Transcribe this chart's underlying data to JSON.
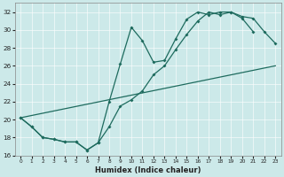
{
  "bg_color": "#cce9e9",
  "grid_color": "#b8d8d8",
  "line_color": "#1e6b5e",
  "xlabel": "Humidex (Indice chaleur)",
  "xlim": [
    -0.5,
    23.5
  ],
  "ylim": [
    16,
    33
  ],
  "xticks": [
    0,
    1,
    2,
    3,
    4,
    5,
    6,
    7,
    8,
    9,
    10,
    11,
    12,
    13,
    14,
    15,
    16,
    17,
    18,
    19,
    20,
    21,
    22,
    23
  ],
  "yticks": [
    16,
    18,
    20,
    22,
    24,
    26,
    28,
    30,
    32
  ],
  "line1_x": [
    0,
    1,
    2,
    3,
    4,
    5,
    6,
    7,
    8,
    9,
    10,
    11,
    12,
    13,
    14,
    15,
    16,
    17,
    18,
    19,
    20,
    21
  ],
  "line1_y": [
    20.2,
    19.2,
    18.0,
    17.8,
    17.5,
    17.5,
    16.6,
    17.4,
    22.0,
    26.2,
    30.3,
    28.8,
    26.4,
    26.6,
    29.0,
    31.2,
    32.0,
    31.7,
    32.0,
    32.0,
    31.3,
    29.8
  ],
  "line2_x": [
    0,
    1,
    2,
    3,
    4,
    5,
    6,
    7,
    8,
    9,
    10,
    11,
    12,
    13,
    14,
    15,
    16,
    17,
    18,
    19,
    20,
    21,
    22,
    23
  ],
  "line2_y": [
    20.2,
    19.2,
    18.0,
    17.8,
    17.5,
    17.5,
    16.6,
    17.4,
    19.2,
    21.5,
    22.2,
    23.2,
    25.0,
    26.0,
    27.8,
    29.5,
    31.0,
    32.0,
    31.7,
    32.0,
    31.5,
    31.3,
    29.8,
    28.5
  ],
  "line3_x": [
    0,
    23
  ],
  "line3_y": [
    20.2,
    26.0
  ]
}
